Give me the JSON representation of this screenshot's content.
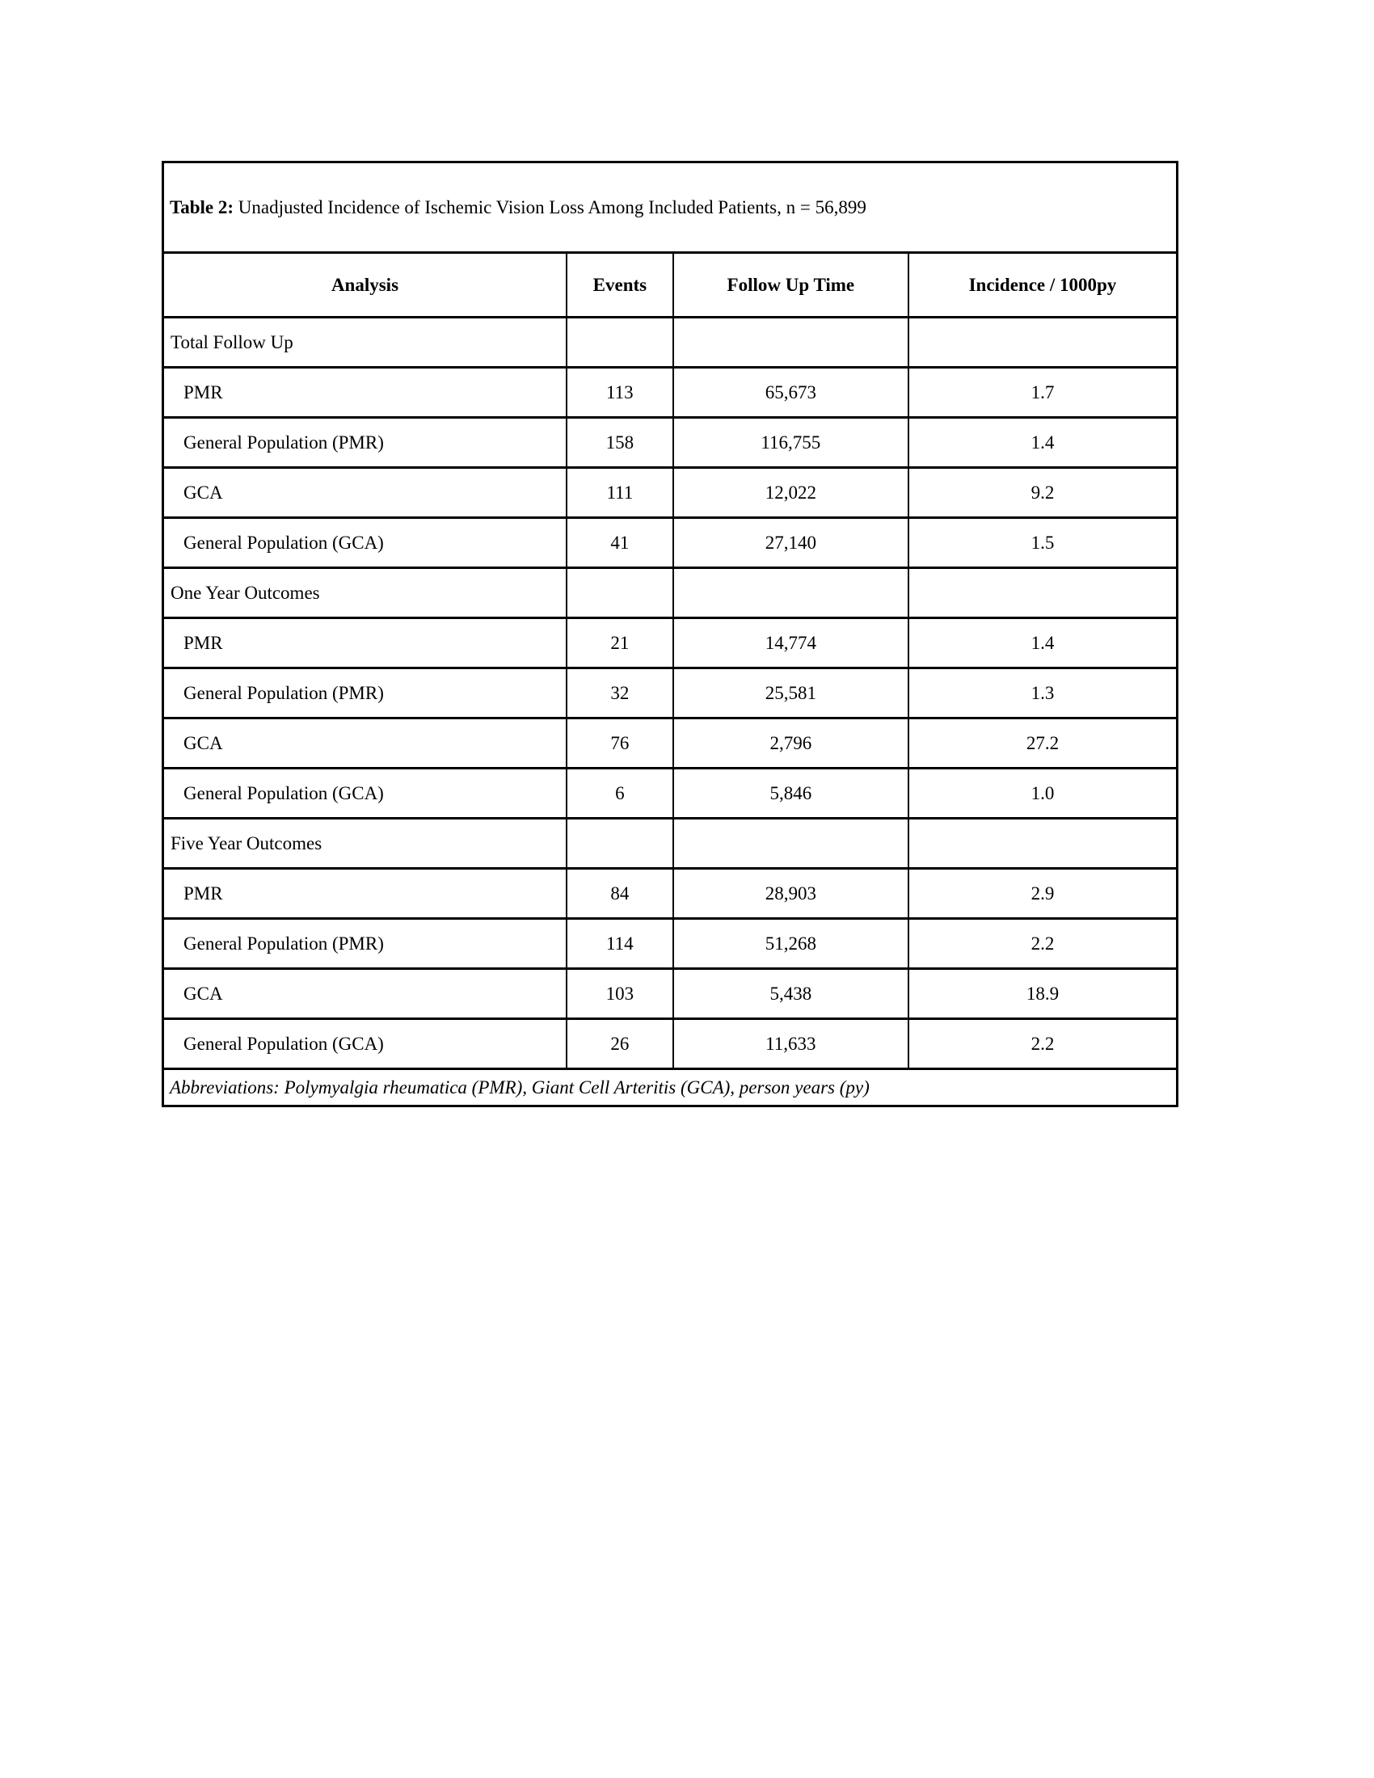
{
  "table": {
    "title_bold": "Table 2:",
    "title_rest": " Unadjusted Incidence of Ischemic Vision Loss Among Included Patients, n = 56,899",
    "columns": {
      "analysis": "Analysis",
      "events": "Events",
      "follow_up": "Follow Up Time",
      "incidence": "Incidence / 1000py"
    },
    "sections": [
      {
        "label": "Total Follow Up",
        "rows": [
          {
            "analysis": "PMR",
            "events": "113",
            "follow_up": "65,673",
            "incidence": "1.7"
          },
          {
            "analysis": "General Population (PMR)",
            "events": "158",
            "follow_up": "116,755",
            "incidence": "1.4"
          },
          {
            "analysis": "GCA",
            "events": "111",
            "follow_up": "12,022",
            "incidence": "9.2"
          },
          {
            "analysis": "General Population (GCA)",
            "events": "41",
            "follow_up": "27,140",
            "incidence": "1.5"
          }
        ]
      },
      {
        "label": "One Year Outcomes",
        "rows": [
          {
            "analysis": "PMR",
            "events": "21",
            "follow_up": "14,774",
            "incidence": "1.4"
          },
          {
            "analysis": "General Population (PMR)",
            "events": "32",
            "follow_up": "25,581",
            "incidence": "1.3"
          },
          {
            "analysis": "GCA",
            "events": "76",
            "follow_up": "2,796",
            "incidence": "27.2"
          },
          {
            "analysis": "General Population (GCA)",
            "events": "6",
            "follow_up": "5,846",
            "incidence": "1.0"
          }
        ]
      },
      {
        "label": "Five Year Outcomes",
        "rows": [
          {
            "analysis": "PMR",
            "events": "84",
            "follow_up": "28,903",
            "incidence": "2.9"
          },
          {
            "analysis": "General Population (PMR)",
            "events": "114",
            "follow_up": "51,268",
            "incidence": "2.2"
          },
          {
            "analysis": "GCA",
            "events": "103",
            "follow_up": "5,438",
            "incidence": "18.9"
          },
          {
            "analysis": "General Population (GCA)",
            "events": "26",
            "follow_up": "11,633",
            "incidence": "2.2"
          }
        ]
      }
    ],
    "footnote": "Abbreviations: Polymyalgia rheumatica (PMR), Giant Cell Arteritis (GCA), person years (py)"
  }
}
